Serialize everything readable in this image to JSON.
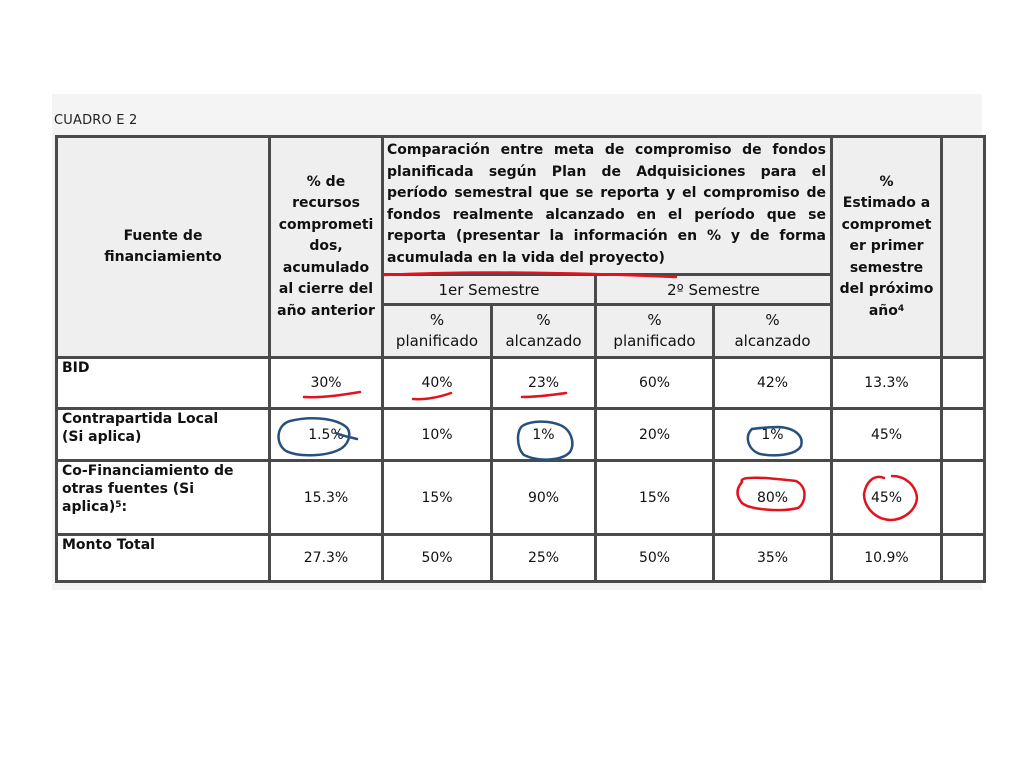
{
  "caption": "CUADRO E 2",
  "headers": {
    "fuente": "Fuente de financiamiento",
    "pct_lines": [
      "% de",
      "recursos",
      "comprometi",
      "dos,",
      "acumulado",
      "al cierre del",
      "año anterior"
    ],
    "comparacion_lines": [
      "Comparación entre meta de compromiso de fondos",
      "planificada según Plan de Adquisiciones para el",
      "período semestral que se reporta y el compromiso de",
      "fondos realmente alcanzado en el período que se",
      "reporta (presentar la información en % y de forma",
      "acumulada en la vida del proyecto)"
    ],
    "estimado_lines": [
      "%",
      "Estimado a",
      "compromet",
      "er primer",
      "semestre",
      "del próximo",
      "año"
    ],
    "estimado_sup": "4",
    "sem1": "1er Semestre",
    "sem2": "2º Semestre",
    "sub": {
      "planificado_pct": "%",
      "planificado": "planificado",
      "alcanzado_pct": "%",
      "alcanzado": "alcanzado"
    }
  },
  "rows": [
    {
      "label_lines": [
        "BID"
      ],
      "values": [
        "30%",
        "40%",
        "23%",
        "60%",
        "42%",
        "13.3%"
      ]
    },
    {
      "label_lines": [
        "Contrapartida Local",
        "(Si aplica)"
      ],
      "values": [
        "1.5%",
        "10%",
        "1%",
        "20%",
        "1%",
        "45%"
      ]
    },
    {
      "label_lines": [
        "Co-Financiamiento de",
        "otras fuentes (Si",
        "aplica)"
      ],
      "label_sup": "5",
      "label_tail": ":",
      "values": [
        "15.3%",
        "15%",
        "90%",
        "15%",
        "80%",
        "45%"
      ]
    },
    {
      "label_lines": [
        "Monto Total"
      ],
      "values": [
        "27.3%",
        "50%",
        "25%",
        "50%",
        "35%",
        "10.9%"
      ]
    }
  ],
  "colors": {
    "ink_red": "#e0131f",
    "ink_blue": "#27507f",
    "grid": "#4a4a4a"
  }
}
